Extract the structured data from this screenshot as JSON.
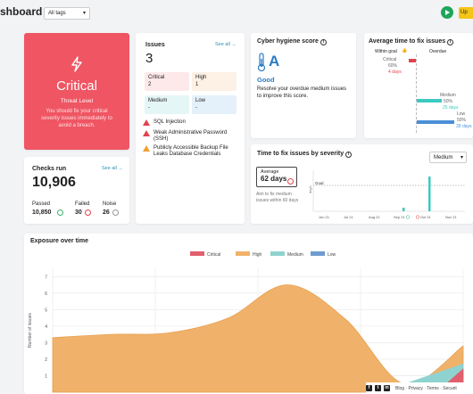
{
  "header": {
    "title": "shboard",
    "tags_select": "All tags",
    "upgrade_label": "Up"
  },
  "threat": {
    "level": "Critical",
    "label": "Threat Level",
    "message": "You should fix your critical severity issues immediately to avoid a breach.",
    "color": "#ef5563"
  },
  "checks": {
    "title": "Checks run",
    "see_all": "See all →",
    "total": "10,906",
    "passed_label": "Passed",
    "passed": "10,850",
    "failed_label": "Failed",
    "failed": "30",
    "noise_label": "Noise",
    "noise": "26"
  },
  "issues": {
    "title": "Issues",
    "see_all": "See all →",
    "total": "3",
    "severities": [
      {
        "label": "Critical",
        "value": "2"
      },
      {
        "label": "High",
        "value": "1"
      },
      {
        "label": "Medium",
        "value": "-"
      },
      {
        "label": "Low",
        "value": "-"
      }
    ],
    "list": [
      "SQL Injection",
      "Weak Administrative Password (SSH)",
      "Publicly Accessible Backup File Leaks Database Credentials"
    ]
  },
  "hygiene": {
    "title": "Cyber hygiene score",
    "grade": "A",
    "status": "Good",
    "message": "Resolve your overdue medium issues to improve this score."
  },
  "avg_time": {
    "title": "Average time to fix issues",
    "within_label": "Within goal",
    "overdue_label": "Overdue",
    "rows": [
      {
        "name": "Critical",
        "pct": "60%",
        "days": "4 days",
        "color": "#e0434f"
      },
      {
        "name": "Medium",
        "pct": "50%",
        "days": "25 days",
        "color": "#3cc9c2"
      },
      {
        "name": "Low",
        "pct": "50%",
        "days": "39 days",
        "color": "#4a8fd8"
      }
    ]
  },
  "time_to_fix": {
    "title": "Time to fix issues by severity",
    "select": "Medium",
    "avg_label": "Average",
    "avg_value": "62 days",
    "goal_note": "Aim to fix medium issues within 60 days",
    "ylabel": "days",
    "goal_label": "Goal",
    "months": [
      "Jun 21",
      "Jul 21",
      "Aug 21",
      "Sep 21",
      "Oct 21",
      "Nov 21"
    ]
  },
  "exposure": {
    "title": "Exposure over time",
    "legend": [
      {
        "label": "Critical",
        "color": "#e0606e"
      },
      {
        "label": "High",
        "color": "#f0b26a"
      },
      {
        "label": "Medium",
        "color": "#8fd3d0"
      },
      {
        "label": "Low",
        "color": "#6f9ccf"
      }
    ],
    "ylabel": "Number of issues",
    "yticks": [
      "7",
      "6",
      "5",
      "4",
      "3",
      "2",
      "1"
    ]
  },
  "footer": {
    "links": "Blog · Privacy · Terms · Securit"
  },
  "chart_data": {
    "type": "area",
    "title": "Exposure over time",
    "ylabel": "Number of issues",
    "ylim": [
      0,
      7.5
    ],
    "series": [
      {
        "name": "High",
        "values": [
          3.3,
          3.5,
          3.6,
          4.5,
          6.5,
          4.4,
          0.5,
          2.8
        ]
      },
      {
        "name": "Medium",
        "values": [
          0,
          0,
          0,
          0,
          0,
          0,
          0.5,
          1.7
        ]
      },
      {
        "name": "Critical",
        "values": [
          0,
          0,
          0,
          0,
          0,
          0,
          0,
          1.4
        ]
      }
    ]
  }
}
